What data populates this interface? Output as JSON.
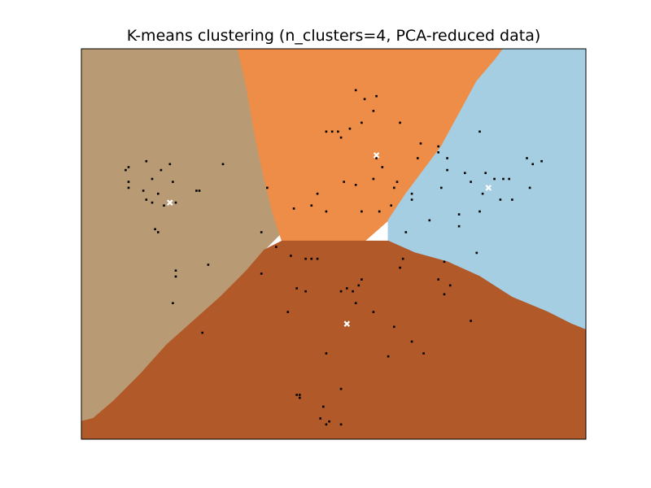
{
  "chart_data": {
    "type": "scatter",
    "title": "K-means clustering (n_clusters=4, PCA-reduced data)",
    "xlabel": "",
    "ylabel": "",
    "axes_visible_ticks": false,
    "grid": false,
    "legend": "none",
    "xlim": [
      -8.6,
      8.5
    ],
    "ylim": [
      -6.7,
      6.5
    ],
    "background": "decision-regions",
    "regions": [
      {
        "cluster": "left",
        "color": "#b89b74",
        "boundary": [
          [
            -8.6,
            6.5
          ],
          [
            -3.3,
            6.5
          ],
          [
            -3.0,
            5.2
          ],
          [
            -2.7,
            3.5
          ],
          [
            -2.4,
            2.1
          ],
          [
            -2.1,
            0.9
          ],
          [
            -1.8,
            0.3
          ],
          [
            -2.4,
            -0.3
          ],
          [
            -3.0,
            -1.0
          ],
          [
            -3.9,
            -1.9
          ],
          [
            -4.8,
            -2.7
          ],
          [
            -5.7,
            -3.5
          ],
          [
            -6.6,
            -4.5
          ],
          [
            -7.5,
            -5.4
          ],
          [
            -8.2,
            -6.0
          ],
          [
            -8.6,
            -6.1
          ]
        ]
      },
      {
        "cluster": "top",
        "color": "#ee8d47",
        "boundary": [
          [
            -3.3,
            6.5
          ],
          [
            5.7,
            6.5
          ],
          [
            5.4,
            6.1
          ],
          [
            4.8,
            5.4
          ],
          [
            4.2,
            4.3
          ],
          [
            3.6,
            3.2
          ],
          [
            3.0,
            2.4
          ],
          [
            2.4,
            1.6
          ],
          [
            1.8,
            0.7
          ],
          [
            1.0,
            0.0
          ],
          [
            -1.8,
            0.0
          ],
          [
            -2.1,
            0.9
          ],
          [
            -2.4,
            2.1
          ],
          [
            -2.7,
            3.5
          ],
          [
            -3.0,
            5.2
          ]
        ]
      },
      {
        "cluster": "right",
        "color": "#a6cee3",
        "boundary": [
          [
            5.7,
            6.5
          ],
          [
            8.5,
            6.5
          ],
          [
            8.5,
            -3.0
          ],
          [
            8.0,
            -2.8
          ],
          [
            7.2,
            -2.4
          ],
          [
            6.0,
            -1.9
          ],
          [
            4.9,
            -1.2
          ],
          [
            3.8,
            -0.7
          ],
          [
            2.7,
            -0.4
          ],
          [
            1.8,
            0.0
          ],
          [
            1.8,
            0.7
          ],
          [
            2.4,
            1.6
          ],
          [
            3.0,
            2.4
          ],
          [
            3.6,
            3.2
          ],
          [
            4.2,
            4.3
          ],
          [
            4.8,
            5.4
          ],
          [
            5.4,
            6.1
          ]
        ]
      },
      {
        "cluster": "bottom",
        "color": "#b15929",
        "boundary": [
          [
            -1.8,
            0.0
          ],
          [
            1.8,
            0.0
          ],
          [
            2.7,
            -0.4
          ],
          [
            3.8,
            -0.7
          ],
          [
            4.9,
            -1.2
          ],
          [
            6.0,
            -1.9
          ],
          [
            7.2,
            -2.4
          ],
          [
            8.0,
            -2.8
          ],
          [
            8.5,
            -3.0
          ],
          [
            8.5,
            -6.7
          ],
          [
            -8.6,
            -6.7
          ],
          [
            -8.6,
            -6.1
          ],
          [
            -8.2,
            -6.0
          ],
          [
            -7.5,
            -5.4
          ],
          [
            -6.6,
            -4.5
          ],
          [
            -5.7,
            -3.5
          ],
          [
            -4.8,
            -2.7
          ],
          [
            -3.9,
            -1.9
          ],
          [
            -3.0,
            -1.0
          ],
          [
            -2.4,
            -0.3
          ]
        ]
      }
    ],
    "points": {
      "color": "#000000",
      "xy": [
        [
          0.7,
          5.1
        ],
        [
          1.0,
          4.8
        ],
        [
          1.3,
          4.4
        ],
        [
          1.4,
          4.9
        ],
        [
          0.5,
          3.8
        ],
        [
          -0.1,
          3.7
        ],
        [
          0.1,
          3.7
        ],
        [
          0.2,
          3.5
        ],
        [
          -0.3,
          3.7
        ],
        [
          0.9,
          4.0
        ],
        [
          2.2,
          4.0
        ],
        [
          2.9,
          3.3
        ],
        [
          2.8,
          2.8
        ],
        [
          1.4,
          2.8
        ],
        [
          1.6,
          2.5
        ],
        [
          1.3,
          2.1
        ],
        [
          0.7,
          1.9
        ],
        [
          0.3,
          2.0
        ],
        [
          2.1,
          2.0
        ],
        [
          2.0,
          1.8
        ],
        [
          2.6,
          1.6
        ],
        [
          2.6,
          1.4
        ],
        [
          1.9,
          1.2
        ],
        [
          1.5,
          1.0
        ],
        [
          0.9,
          1.0
        ],
        [
          -0.6,
          1.6
        ],
        [
          -0.8,
          1.2
        ],
        [
          -0.3,
          1.0
        ],
        [
          -1.4,
          1.1
        ],
        [
          -2.3,
          1.8
        ],
        [
          -2.5,
          0.3
        ],
        [
          -7.0,
          2.5
        ],
        [
          -7.1,
          2.4
        ],
        [
          -6.4,
          2.7
        ],
        [
          -6.2,
          2.1
        ],
        [
          -5.6,
          2.6
        ],
        [
          -5.9,
          2.4
        ],
        [
          -5.5,
          2.0
        ],
        [
          -7.0,
          2.0
        ],
        [
          -7.0,
          1.8
        ],
        [
          -6.5,
          1.7
        ],
        [
          -6.0,
          1.6
        ],
        [
          -6.4,
          1.4
        ],
        [
          -6.2,
          1.3
        ],
        [
          -5.8,
          1.2
        ],
        [
          -5.4,
          1.3
        ],
        [
          -4.7,
          1.7
        ],
        [
          -4.6,
          1.7
        ],
        [
          -3.8,
          2.6
        ],
        [
          -6.1,
          0.4
        ],
        [
          -6.0,
          0.3
        ],
        [
          -4.3,
          -0.8
        ],
        [
          -2.5,
          -1.1
        ],
        [
          -5.4,
          -1.0
        ],
        [
          -5.4,
          -1.2
        ],
        [
          -5.5,
          -2.1
        ],
        [
          -4.5,
          -3.1
        ],
        [
          -2.0,
          -0.2
        ],
        [
          -1.5,
          -0.5
        ],
        [
          -1.0,
          -0.6
        ],
        [
          -0.8,
          -0.6
        ],
        [
          -0.6,
          -0.6
        ],
        [
          -1.3,
          -1.6
        ],
        [
          -1.0,
          -1.7
        ],
        [
          -1.6,
          -2.4
        ],
        [
          0.2,
          -1.7
        ],
        [
          0.4,
          -1.6
        ],
        [
          0.8,
          -1.5
        ],
        [
          0.9,
          -1.3
        ],
        [
          0.6,
          -1.7
        ],
        [
          2.2,
          -0.9
        ],
        [
          2.3,
          -0.6
        ],
        [
          3.5,
          -1.3
        ],
        [
          3.9,
          -1.5
        ],
        [
          3.7,
          -1.8
        ],
        [
          1.3,
          -2.4
        ],
        [
          2.0,
          -2.9
        ],
        [
          2.6,
          -3.4
        ],
        [
          1.8,
          -3.9
        ],
        [
          3.0,
          -3.8
        ],
        [
          4.6,
          -2.7
        ],
        [
          0.7,
          -2.1
        ],
        [
          -0.3,
          -3.8
        ],
        [
          0.2,
          -5.0
        ],
        [
          -1.2,
          -5.2
        ],
        [
          -1.3,
          -5.2
        ],
        [
          -1.2,
          -5.3
        ],
        [
          -0.4,
          -5.6
        ],
        [
          -0.5,
          -6.0
        ],
        [
          -0.2,
          -6.1
        ],
        [
          -0.3,
          -6.2
        ],
        [
          0.2,
          -6.2
        ],
        [
          3.8,
          2.8
        ],
        [
          3.8,
          2.4
        ],
        [
          4.4,
          2.3
        ],
        [
          4.6,
          2.0
        ],
        [
          5.1,
          2.3
        ],
        [
          5.4,
          2.1
        ],
        [
          5.7,
          2.1
        ],
        [
          6.5,
          2.8
        ],
        [
          6.7,
          2.6
        ],
        [
          7.0,
          2.7
        ],
        [
          5.0,
          1.6
        ],
        [
          5.6,
          1.4
        ],
        [
          6.0,
          1.4
        ],
        [
          6.6,
          1.8
        ],
        [
          5.9,
          2.1
        ],
        [
          4.9,
          3.7
        ],
        [
          3.5,
          3.2
        ],
        [
          3.5,
          3.0
        ],
        [
          3.6,
          1.8
        ],
        [
          4.2,
          0.9
        ],
        [
          4.2,
          0.5
        ],
        [
          4.9,
          1.0
        ],
        [
          3.2,
          0.7
        ],
        [
          3.7,
          -0.7
        ],
        [
          4.8,
          -0.4
        ],
        [
          2.4,
          0.3
        ]
      ]
    },
    "centroids": {
      "color": "#ffffff",
      "marker": "x",
      "xy": [
        [
          1.4,
          2.9
        ],
        [
          -5.6,
          1.3
        ],
        [
          0.4,
          -2.8
        ],
        [
          5.2,
          1.8
        ]
      ]
    }
  }
}
